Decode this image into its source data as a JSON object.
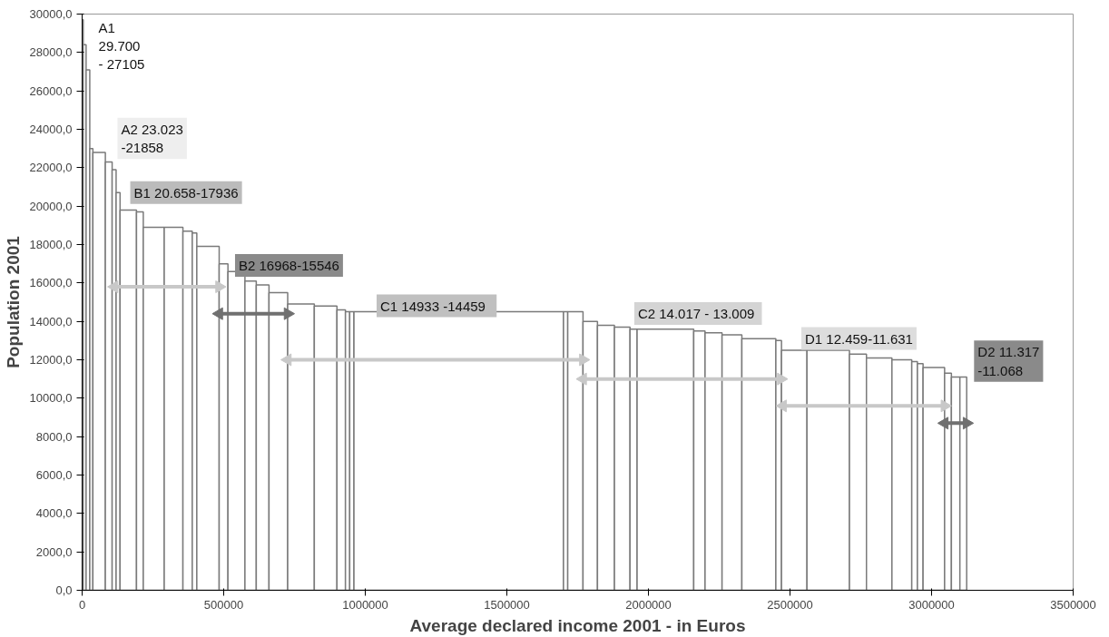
{
  "chart_data": {
    "type": "histogram",
    "xlabel": "Average declared income 2001 - in Euros",
    "ylabel": "Population 2001",
    "bins": [
      0,
      4000,
      14000,
      27000,
      38000,
      82000,
      106000,
      120000,
      134000,
      192000,
      216000,
      290000,
      356000,
      389000,
      405000,
      484000,
      515000,
      575000,
      615000,
      660000,
      726000,
      820000,
      900000,
      930000,
      945000,
      960000,
      1700000,
      1715000,
      1769000,
      1820000,
      1880000,
      1935000,
      1960000,
      2160000,
      2200000,
      2260000,
      2330000,
      2450000,
      2470000,
      2560000,
      2710000,
      2770000,
      2860000,
      2930000,
      2950000,
      2970000,
      3046000,
      3070000,
      3100000,
      3124000
    ],
    "values": [
      29700,
      28400,
      27100,
      23000,
      22800,
      22300,
      21900,
      20700,
      19800,
      19700,
      18900,
      18900,
      18700,
      18600,
      17900,
      17000,
      16600,
      16100,
      15900,
      15500,
      14900,
      14800,
      14600,
      14500,
      14500,
      14500,
      14500,
      14500,
      14000,
      13800,
      13700,
      13600,
      13600,
      13500,
      13400,
      13300,
      13100,
      13000,
      12500,
      12500,
      12300,
      12100,
      12000,
      11900,
      11800,
      11600,
      11300,
      11100,
      11100
    ],
    "color": "#ffffff",
    "series": [
      {
        "type": "line",
        "color": "#c8c8c8",
        "marker": "triangle",
        "x": [
          114000,
          484000
        ],
        "values": [
          15800,
          15800
        ]
      },
      {
        "type": "line",
        "color": "#707070",
        "marker": "triangle",
        "x": [
          484000,
          726000
        ],
        "values": [
          14400,
          14400
        ]
      },
      {
        "type": "line",
        "color": "#c8c8c8",
        "marker": "triangle",
        "x": [
          726000,
          1769000
        ],
        "values": [
          12000,
          12000
        ]
      },
      {
        "type": "line",
        "color": "#c8c8c8",
        "marker": "triangle",
        "x": [
          1769000,
          2468000
        ],
        "values": [
          11000,
          11000
        ]
      },
      {
        "type": "line",
        "color": "#c8c8c8",
        "marker": "triangle",
        "x": [
          2475000,
          3046000
        ],
        "values": [
          9600,
          9600
        ]
      },
      {
        "type": "line",
        "color": "#707070",
        "marker": "triangle",
        "x": [
          3046000,
          3124000
        ],
        "values": [
          8700,
          8700
        ]
      }
    ],
    "annotations": [
      "A1\n29.700\n- 27105",
      "A2 23.023\n-21858",
      "B1 20.658-17936",
      "B2 16968-15546",
      "C1   14933 -14459",
      "C2  14.017 - 13.009",
      "D1 12.459-11.631",
      "D2 11.317\n-11.068"
    ],
    "xlim": [
      0,
      3500000
    ],
    "ylim": [
      0,
      30000
    ],
    "xticks": [
      0,
      500000,
      1000000,
      1500000,
      2000000,
      2500000,
      3000000,
      3500000
    ],
    "yticks": [
      {
        "value": 0,
        "label": "0,0"
      },
      {
        "value": 2000,
        "label": "2000,0"
      },
      {
        "value": 4000,
        "label": "4000,0"
      },
      {
        "value": 6000,
        "label": "6000,0"
      },
      {
        "value": 8000,
        "label": "8000,0"
      },
      {
        "value": 10000,
        "label": "10000,0"
      },
      {
        "value": 12000,
        "label": "12000,0"
      },
      {
        "value": 14000,
        "label": "14000,0"
      },
      {
        "value": 16000,
        "label": "16000,0"
      },
      {
        "value": 18000,
        "label": "18000,0"
      },
      {
        "value": 20000,
        "label": "20000,0"
      },
      {
        "value": 22000,
        "label": "22000,0"
      },
      {
        "value": 24000,
        "label": "24000,0"
      },
      {
        "value": 26000,
        "label": "26000,0"
      },
      {
        "value": 28000,
        "label": "28000,0"
      },
      {
        "value": 30000,
        "label": "30000,0"
      }
    ]
  }
}
